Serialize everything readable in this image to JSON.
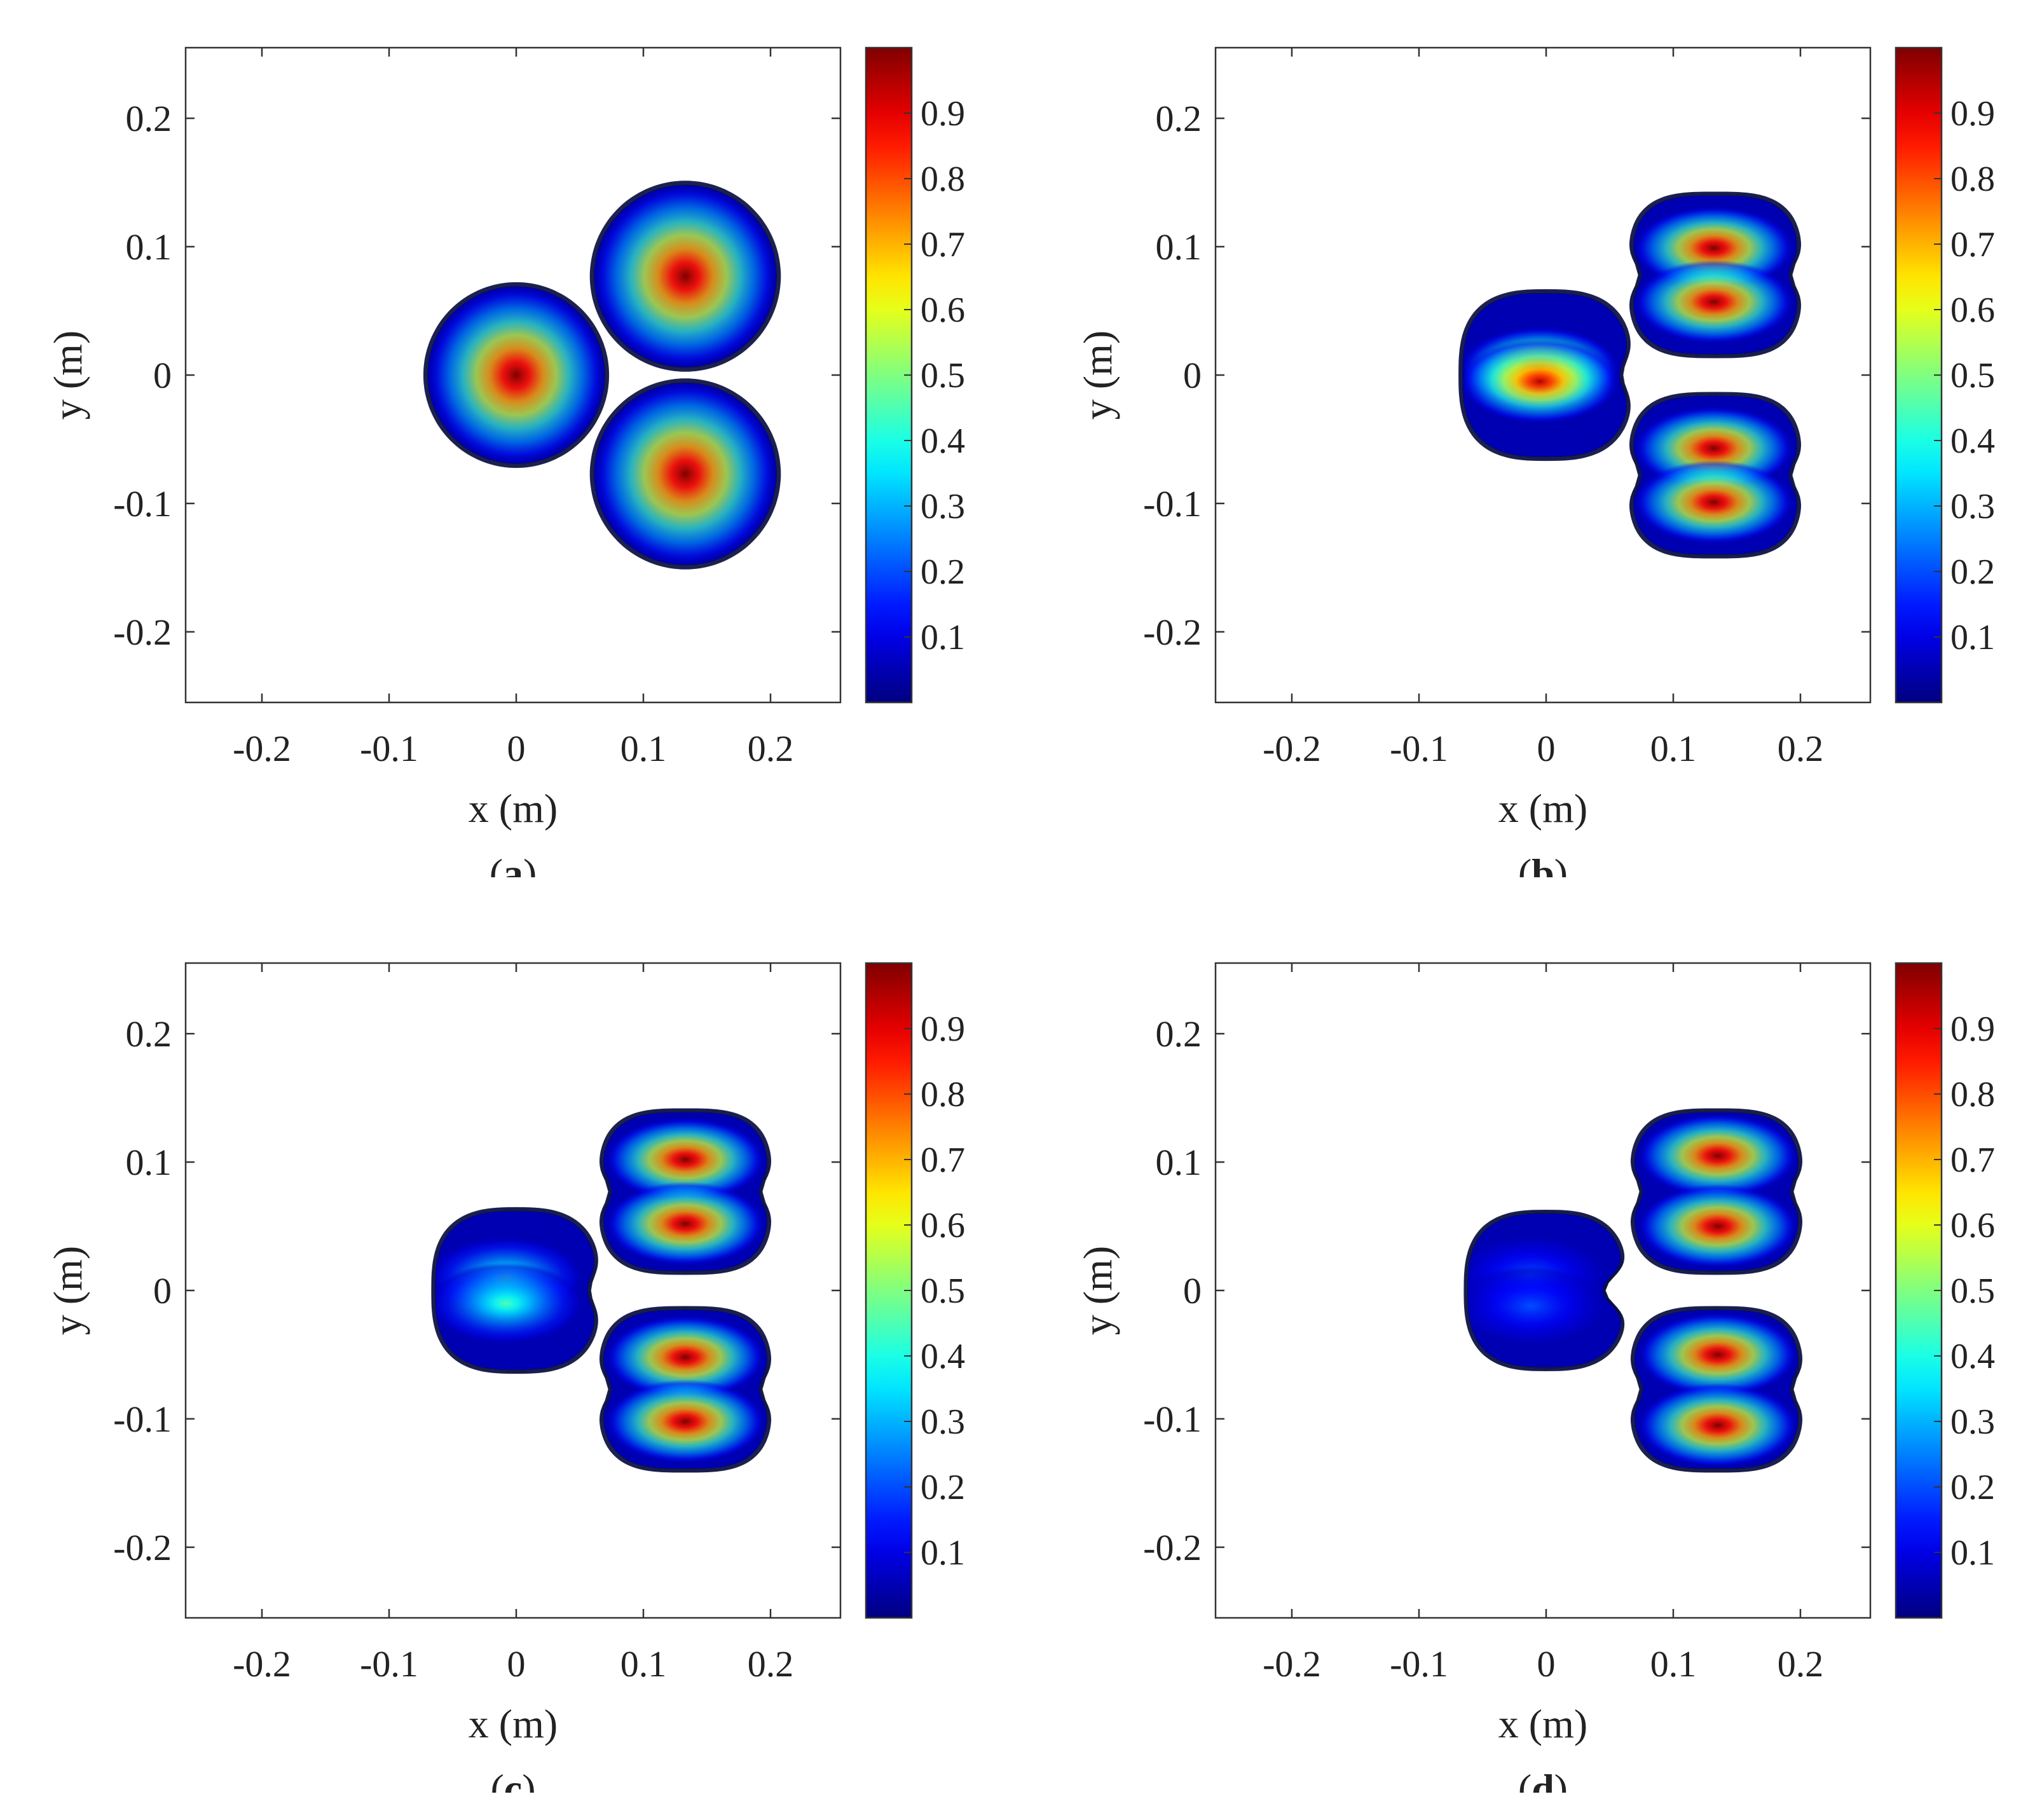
{
  "colormap": "jet",
  "chart_data": [
    {
      "id": "a",
      "type": "heatmap",
      "panel_label": "a",
      "xlabel": "x (m)",
      "ylabel": "y (m)",
      "xlim": [
        -0.26,
        0.255
      ],
      "ylim": [
        -0.255,
        0.255
      ],
      "xticks": [
        -0.2,
        -0.1,
        0,
        0.1,
        0.2
      ],
      "xtick_labels": [
        "-0.2",
        "-0.1",
        "0",
        "0.1",
        "0.2"
      ],
      "yticks": [
        -0.2,
        -0.1,
        0,
        0.1,
        0.2
      ],
      "ytick_labels": [
        "-0.2",
        "-0.1",
        "0",
        "0.1",
        "0.2"
      ],
      "colorbar": {
        "range": [
          0,
          1
        ],
        "ticks": [
          0.1,
          0.2,
          0.3,
          0.4,
          0.5,
          0.6,
          0.7,
          0.8,
          0.9
        ],
        "tick_labels": [
          "0.1",
          "0.2",
          "0.3",
          "0.4",
          "0.5",
          "0.6",
          "0.7",
          "0.8",
          "0.9"
        ]
      },
      "regions": [
        {
          "center": [
            0,
            0
          ],
          "radius": 0.07,
          "shape": "circle",
          "peak": 1.0,
          "hotspots": [
            [
              0,
              0
            ]
          ]
        },
        {
          "center": [
            0.133,
            0.077
          ],
          "radius": 0.072,
          "shape": "circle",
          "peak": 1.0,
          "hotspots": [
            [
              0.133,
              0.077
            ]
          ]
        },
        {
          "center": [
            0.133,
            -0.077
          ],
          "radius": 0.072,
          "shape": "circle",
          "peak": 1.0,
          "hotspots": [
            [
              0.133,
              -0.077
            ]
          ]
        }
      ]
    },
    {
      "id": "b",
      "type": "heatmap",
      "panel_label": "b",
      "xlabel": "x (m)",
      "ylabel": "y (m)",
      "xlim": [
        -0.26,
        0.255
      ],
      "ylim": [
        -0.255,
        0.255
      ],
      "xticks": [
        -0.2,
        -0.1,
        0,
        0.1,
        0.2
      ],
      "xtick_labels": [
        "-0.2",
        "-0.1",
        "0",
        "0.1",
        "0.2"
      ],
      "yticks": [
        -0.2,
        -0.1,
        0,
        0.1,
        0.2
      ],
      "ytick_labels": [
        "-0.2",
        "-0.1",
        "0",
        "0.1",
        "0.2"
      ],
      "colorbar": {
        "range": [
          0,
          1
        ],
        "ticks": [
          0.1,
          0.2,
          0.3,
          0.4,
          0.5,
          0.6,
          0.7,
          0.8,
          0.9
        ],
        "tick_labels": [
          "0.1",
          "0.2",
          "0.3",
          "0.4",
          "0.5",
          "0.6",
          "0.7",
          "0.8",
          "0.9"
        ]
      },
      "regions": [
        {
          "center": [
            0,
            0
          ],
          "radius": 0.066,
          "shape": "bean",
          "peak": 0.95,
          "hotspots": [
            [
              -0.005,
              0.005
            ],
            [
              -0.005,
              -0.005
            ]
          ]
        },
        {
          "center": [
            0.133,
            0.078
          ],
          "radius": 0.066,
          "shape": "figure8",
          "peak": 1.0,
          "hotspots": [
            [
              0.132,
              0.099
            ],
            [
              0.132,
              0.057
            ]
          ]
        },
        {
          "center": [
            0.133,
            -0.078
          ],
          "radius": 0.066,
          "shape": "figure8",
          "peak": 1.0,
          "hotspots": [
            [
              0.132,
              -0.057
            ],
            [
              0.132,
              -0.099
            ]
          ]
        }
      ]
    },
    {
      "id": "c",
      "type": "heatmap",
      "panel_label": "c",
      "xlabel": "x (m)",
      "ylabel": "y (m)",
      "xlim": [
        -0.26,
        0.255
      ],
      "ylim": [
        -0.255,
        0.255
      ],
      "xticks": [
        -0.2,
        -0.1,
        0,
        0.1,
        0.2
      ],
      "xtick_labels": [
        "-0.2",
        "-0.1",
        "0",
        "0.1",
        "0.2"
      ],
      "yticks": [
        -0.2,
        -0.1,
        0,
        0.1,
        0.2
      ],
      "ytick_labels": [
        "-0.2",
        "-0.1",
        "0",
        "0.1",
        "0.2"
      ],
      "colorbar": {
        "range": [
          0,
          1
        ],
        "ticks": [
          0.1,
          0.2,
          0.3,
          0.4,
          0.5,
          0.6,
          0.7,
          0.8,
          0.9
        ],
        "tick_labels": [
          "0.1",
          "0.2",
          "0.3",
          "0.4",
          "0.5",
          "0.6",
          "0.7",
          "0.8",
          "0.9"
        ]
      },
      "regions": [
        {
          "center": [
            0,
            0
          ],
          "radius": 0.064,
          "shape": "bean",
          "peak": 0.45,
          "hotspots": [
            [
              -0.008,
              0.01
            ],
            [
              -0.008,
              -0.01
            ]
          ]
        },
        {
          "center": [
            0.133,
            0.077
          ],
          "radius": 0.066,
          "shape": "figure8",
          "peak": 1.0,
          "hotspots": [
            [
              0.133,
              0.102
            ],
            [
              0.133,
              0.052
            ]
          ]
        },
        {
          "center": [
            0.133,
            -0.077
          ],
          "radius": 0.066,
          "shape": "figure8",
          "peak": 1.0,
          "hotspots": [
            [
              0.133,
              -0.052
            ],
            [
              0.133,
              -0.102
            ]
          ]
        }
      ]
    },
    {
      "id": "d",
      "type": "heatmap",
      "panel_label": "d",
      "xlabel": "x (m)",
      "ylabel": "y (m)",
      "xlim": [
        -0.26,
        0.255
      ],
      "ylim": [
        -0.255,
        0.255
      ],
      "xticks": [
        -0.2,
        -0.1,
        0,
        0.1,
        0.2
      ],
      "xtick_labels": [
        "-0.2",
        "-0.1",
        "0",
        "0.1",
        "0.2"
      ],
      "yticks": [
        -0.2,
        -0.1,
        0,
        0.1,
        0.2
      ],
      "ytick_labels": [
        "-0.2",
        "-0.1",
        "0",
        "0.1",
        "0.2"
      ],
      "colorbar": {
        "range": [
          0,
          1
        ],
        "ticks": [
          0.1,
          0.2,
          0.3,
          0.4,
          0.5,
          0.6,
          0.7,
          0.8,
          0.9
        ],
        "tick_labels": [
          "0.1",
          "0.2",
          "0.3",
          "0.4",
          "0.5",
          "0.6",
          "0.7",
          "0.8",
          "0.9"
        ]
      },
      "regions": [
        {
          "center": [
            0,
            0
          ],
          "radius": 0.062,
          "shape": "pacman",
          "peak": 0.2,
          "hotspots": [
            [
              -0.012,
              0.012
            ],
            [
              -0.012,
              -0.012
            ]
          ]
        },
        {
          "center": [
            0.134,
            0.077
          ],
          "radius": 0.066,
          "shape": "figure8",
          "peak": 1.0,
          "hotspots": [
            [
              0.135,
              0.105
            ],
            [
              0.135,
              0.05
            ]
          ]
        },
        {
          "center": [
            0.134,
            -0.077
          ],
          "radius": 0.066,
          "shape": "figure8",
          "peak": 1.0,
          "hotspots": [
            [
              0.135,
              -0.05
            ],
            [
              0.135,
              -0.105
            ]
          ]
        }
      ]
    }
  ]
}
